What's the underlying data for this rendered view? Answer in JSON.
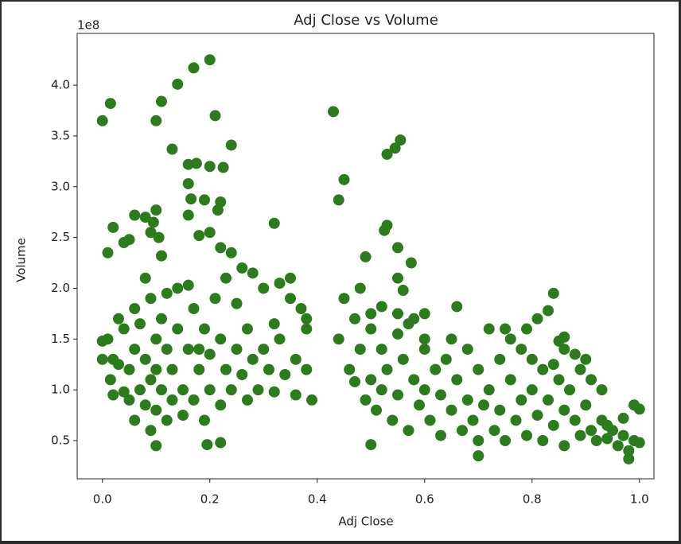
{
  "chart_data": {
    "type": "scatter",
    "title": "Adj Close vs Volume",
    "x_label": "Adj Close",
    "y_label": "Volume",
    "y_offset_text": "1e8",
    "color": "#2e7a1f",
    "xlim": [
      -0.047,
      1.027
    ],
    "ylim": [
      0.124,
      4.51
    ],
    "xticks": [
      {
        "value": 0,
        "label": "0.0"
      },
      0.2,
      0.4,
      0.6,
      0.8,
      {
        "value": 1,
        "label": "1.0"
      }
    ],
    "yticks": [
      0.5,
      {
        "value": 1,
        "label": "1.0"
      },
      1.5,
      {
        "value": 2,
        "label": "2.0"
      },
      2.5,
      {
        "value": 3,
        "label": "3.0"
      },
      3.5,
      {
        "value": 4,
        "label": "4.0"
      }
    ],
    "x": [
      0.0,
      0.015,
      0.1,
      0.11,
      0.14,
      0.17,
      0.2,
      0.13,
      0.21,
      0.24,
      0.16,
      0.175,
      0.2,
      0.225,
      0.16,
      0.165,
      0.19,
      0.22,
      0.215,
      0.16,
      0.2,
      0.18,
      0.32,
      0.43,
      0.45,
      0.44,
      0.53,
      0.545,
      0.555,
      0.53,
      0.525,
      0.55,
      0.575,
      0.55,
      0.49,
      0.08,
      0.1,
      0.06,
      0.02,
      0.01,
      0.04,
      0.05,
      0.11,
      0.09,
      0.095,
      0.105,
      0.195,
      0.22,
      0.1,
      0.5,
      0.7,
      0.98,
      1.0,
      0.99,
      1.0,
      0.97,
      0.94,
      0.93,
      0.91,
      0.89,
      0.9,
      0.86,
      0.85,
      0.86,
      0.84,
      0.83,
      0.81,
      0.79,
      0.75,
      0.72,
      0.66,
      0.6,
      0.58,
      0.57,
      0.56,
      0.52,
      0.5,
      0.01,
      0.02,
      0.015,
      0.02,
      0.03,
      0.04,
      0.05,
      0.05,
      0.06,
      0.06,
      0.06,
      0.07,
      0.07,
      0.08,
      0.08,
      0.09,
      0.09,
      0.09,
      0.1,
      0.1,
      0.1,
      0.11,
      0.11,
      0.12,
      0.12,
      0.12,
      0.13,
      0.13,
      0.14,
      0.15,
      0.15,
      0.16,
      0.17,
      0.17,
      0.18,
      0.19,
      0.19,
      0.2,
      0.2,
      0.21,
      0.22,
      0.22,
      0.23,
      0.23,
      0.24,
      0.25,
      0.25,
      0.26,
      0.27,
      0.27,
      0.28,
      0.28,
      0.29,
      0.3,
      0.31,
      0.32,
      0.32,
      0.33,
      0.33,
      0.34,
      0.35,
      0.35,
      0.36,
      0.36,
      0.37,
      0.38,
      0.38,
      0.39,
      0.38,
      0.08,
      0.14,
      0.03,
      0.0,
      0.0,
      0.04,
      0.26,
      0.3,
      0.24,
      0.22,
      0.16,
      0.18,
      0.44,
      0.45,
      0.46,
      0.47,
      0.47,
      0.48,
      0.48,
      0.49,
      0.5,
      0.5,
      0.51,
      0.52,
      0.52,
      0.53,
      0.54,
      0.55,
      0.55,
      0.56,
      0.57,
      0.58,
      0.59,
      0.6,
      0.6,
      0.61,
      0.62,
      0.63,
      0.63,
      0.64,
      0.65,
      0.66,
      0.67,
      0.68,
      0.68,
      0.69,
      0.7,
      0.7,
      0.71,
      0.72,
      0.73,
      0.74,
      0.74,
      0.75,
      0.76,
      0.77,
      0.78,
      0.78,
      0.79,
      0.8,
      0.81,
      0.82,
      0.82,
      0.83,
      0.84,
      0.85,
      0.86,
      0.86,
      0.87,
      0.88,
      0.89,
      0.9,
      0.91,
      0.92,
      0.93,
      0.94,
      0.95,
      0.96,
      0.97,
      0.98,
      0.99,
      0.55,
      0.6,
      0.65,
      0.76,
      0.8,
      0.84,
      0.88
    ],
    "values": [
      3.65,
      3.82,
      3.65,
      3.84,
      4.01,
      4.17,
      4.25,
      3.37,
      3.7,
      3.41,
      3.22,
      3.23,
      3.2,
      3.19,
      3.03,
      2.88,
      2.87,
      2.85,
      2.77,
      2.72,
      2.55,
      2.52,
      2.64,
      3.74,
      3.07,
      2.87,
      3.32,
      3.38,
      3.46,
      2.62,
      2.57,
      2.4,
      2.25,
      2.1,
      2.31,
      2.7,
      2.77,
      2.72,
      2.6,
      2.35,
      2.45,
      2.48,
      2.32,
      2.55,
      2.65,
      2.5,
      0.46,
      0.48,
      0.45,
      0.46,
      0.35,
      0.32,
      0.48,
      0.85,
      0.81,
      0.72,
      0.65,
      1.0,
      1.1,
      1.2,
      1.3,
      1.52,
      1.48,
      1.4,
      1.95,
      1.78,
      1.7,
      1.6,
      1.6,
      1.6,
      1.82,
      1.75,
      1.7,
      1.65,
      1.98,
      1.82,
      1.75,
      1.5,
      1.3,
      1.1,
      0.95,
      1.7,
      1.6,
      1.2,
      0.9,
      1.8,
      1.4,
      0.7,
      1.0,
      1.65,
      1.3,
      0.85,
      1.9,
      1.1,
      0.6,
      1.5,
      1.2,
      0.8,
      1.7,
      1.0,
      1.4,
      0.7,
      1.95,
      1.2,
      0.9,
      1.6,
      1.0,
      0.75,
      1.4,
      1.8,
      0.9,
      1.2,
      0.7,
      1.6,
      1.0,
      1.35,
      1.9,
      0.85,
      1.5,
      1.2,
      2.1,
      1.0,
      1.4,
      1.85,
      1.15,
      0.9,
      1.6,
      2.15,
      1.3,
      1.0,
      1.4,
      1.2,
      0.98,
      1.65,
      1.5,
      2.05,
      1.15,
      1.9,
      2.1,
      1.3,
      0.95,
      1.8,
      1.2,
      1.6,
      0.9,
      1.7,
      2.1,
      2.0,
      1.25,
      1.48,
      1.3,
      0.98,
      2.2,
      2.0,
      2.35,
      2.4,
      2.03,
      1.4,
      1.5,
      1.9,
      1.2,
      1.08,
      1.7,
      2.0,
      1.4,
      0.9,
      1.6,
      1.1,
      0.8,
      1.4,
      1.0,
      1.2,
      0.7,
      1.55,
      0.95,
      1.3,
      0.6,
      1.1,
      0.85,
      1.4,
      1.0,
      0.7,
      1.2,
      0.55,
      0.95,
      1.3,
      0.8,
      1.1,
      0.6,
      0.9,
      1.4,
      0.7,
      1.2,
      0.5,
      0.85,
      1.0,
      0.6,
      1.3,
      0.8,
      0.5,
      1.1,
      0.7,
      0.9,
      1.4,
      0.55,
      1.0,
      0.75,
      0.5,
      1.2,
      0.9,
      0.65,
      1.1,
      0.8,
      0.45,
      1.0,
      0.7,
      0.55,
      0.85,
      0.6,
      0.5,
      0.7,
      0.52,
      0.6,
      0.45,
      0.55,
      0.4,
      0.5,
      1.75,
      1.5,
      1.5,
      1.5,
      1.3,
      1.25,
      1.35
    ]
  }
}
